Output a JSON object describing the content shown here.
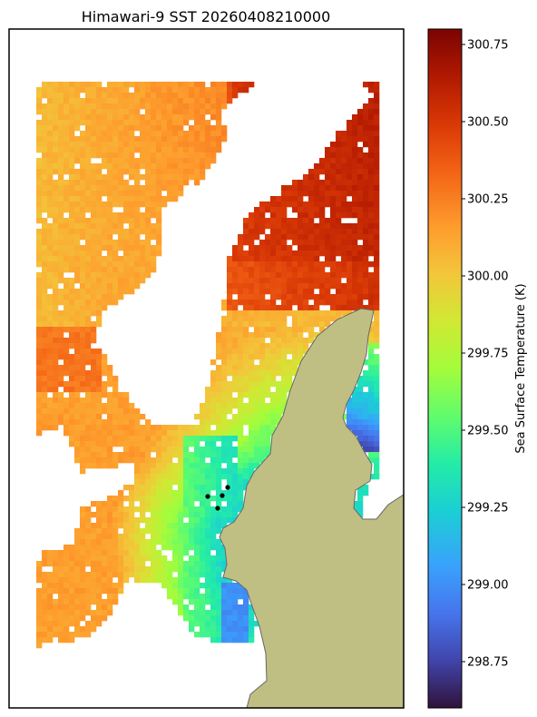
{
  "chart_data": {
    "type": "heatmap",
    "title": "Himawari-9 SST 20260408210000",
    "colorbar": {
      "label": "Sea Surface Temperature (K)",
      "range": [
        298.6,
        300.8
      ],
      "ticks": [
        298.75,
        299.0,
        299.25,
        299.5,
        299.75,
        300.0,
        300.25,
        300.5,
        300.75
      ],
      "tick_labels": [
        "298.75",
        "299.00",
        "299.25",
        "299.50",
        "299.75",
        "300.00",
        "300.25",
        "300.50",
        "300.75"
      ],
      "colormap": "turbo"
    },
    "land_color": "#bfbf84",
    "missing_color": "#ffffff",
    "points_color": "#000000",
    "grid_description": "Gridded SST over coastal waters; a landmass occupies the lower right; white areas are cloud-masked (no data)",
    "regions": [
      {
        "area": "northwest",
        "sst_range": [
          299.75,
          300.35
        ]
      },
      {
        "area": "northeast offshore",
        "sst_range": [
          300.4,
          300.65
        ]
      },
      {
        "area": "west mid",
        "sst_range": [
          300.15,
          300.3
        ]
      },
      {
        "area": "near-coast south",
        "sst_range": [
          299.25,
          299.7
        ]
      },
      {
        "area": "far south nearshore",
        "sst_range": [
          298.95,
          299.1
        ]
      }
    ],
    "grid": false,
    "axes_ticks": false
  }
}
